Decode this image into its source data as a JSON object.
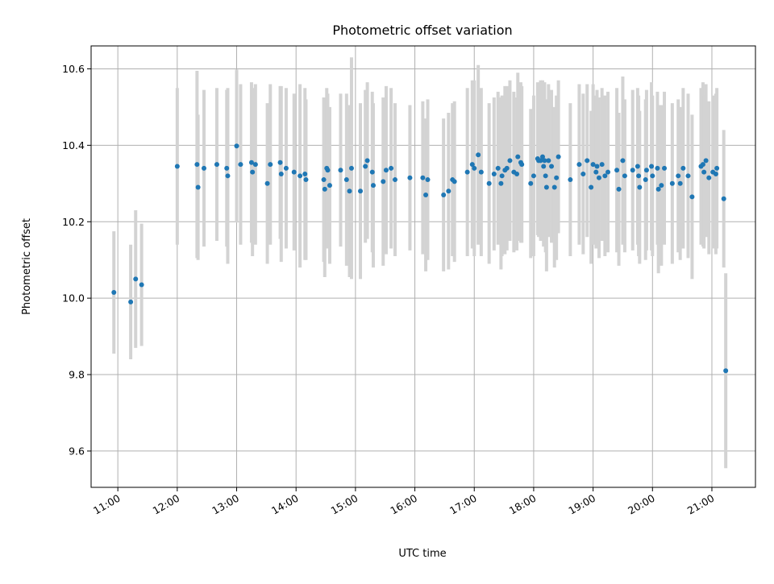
{
  "chart_data": {
    "type": "scatter",
    "title": "Photometric offset variation",
    "xlabel": "UTC time",
    "ylabel": "Photometric offset",
    "x_ticks": [
      "11:00",
      "12:00",
      "13:00",
      "14:00",
      "15:00",
      "16:00",
      "17:00",
      "18:00",
      "19:00",
      "20:00",
      "21:00"
    ],
    "y_ticks": [
      "9.6",
      "9.8",
      "10.0",
      "10.2",
      "10.4",
      "10.6"
    ],
    "xlim": [
      "10:33",
      "21:44"
    ],
    "ylim": [
      9.505,
      10.66
    ],
    "grid": true,
    "colors": {
      "marker": "#1f77b4",
      "errorbar": "#d3d3d3",
      "grid": "#b0b0b0"
    },
    "series": [
      {
        "x": [
          "10:56",
          "11:13",
          "11:18",
          "11:24",
          "12:00",
          "12:20",
          "12:21",
          "12:27",
          "12:40",
          "12:50",
          "12:51",
          "13:00",
          "13:04",
          "13:15",
          "13:16",
          "13:19",
          "13:31",
          "13:34",
          "13:44",
          "13:45",
          "13:50",
          "13:58",
          "14:04",
          "14:09",
          "14:10",
          "14:28",
          "14:29",
          "14:31",
          "14:32",
          "14:34",
          "14:45",
          "14:51",
          "14:54",
          "14:56",
          "15:05",
          "15:10",
          "15:12",
          "15:17",
          "15:18",
          "15:28",
          "15:31",
          "15:36",
          "15:40",
          "15:55",
          "16:08",
          "16:11",
          "16:13",
          "16:29",
          "16:34",
          "16:38",
          "16:40",
          "16:53",
          "16:58",
          "17:00",
          "17:04",
          "17:07",
          "17:15",
          "17:20",
          "17:24",
          "17:27",
          "17:28",
          "17:31",
          "17:33",
          "17:36",
          "17:40",
          "17:43",
          "17:44",
          "17:47",
          "17:48",
          "17:57",
          "18:00",
          "18:04",
          "18:05",
          "18:07",
          "18:09",
          "18:10",
          "18:11",
          "18:12",
          "18:13",
          "18:15",
          "18:18",
          "18:21",
          "18:23",
          "18:25",
          "18:37",
          "18:46",
          "18:50",
          "18:54",
          "18:58",
          "19:00",
          "19:03",
          "19:04",
          "19:06",
          "19:09",
          "19:12",
          "19:15",
          "19:24",
          "19:26",
          "19:30",
          "19:32",
          "19:40",
          "19:45",
          "19:46",
          "19:47",
          "19:53",
          "19:54",
          "19:59",
          "20:00",
          "20:05",
          "20:06",
          "20:09",
          "20:12",
          "20:20",
          "20:26",
          "20:28",
          "20:31",
          "20:36",
          "20:40",
          "20:49",
          "20:51",
          "20:52",
          "20:54",
          "20:57",
          "21:01",
          "21:04",
          "21:05",
          "21:12",
          "21:14"
        ],
        "y": [
          10.015,
          9.99,
          10.05,
          10.035,
          10.345,
          10.35,
          10.29,
          10.34,
          10.35,
          10.34,
          10.32,
          10.398,
          10.35,
          10.355,
          10.33,
          10.35,
          10.3,
          10.35,
          10.355,
          10.325,
          10.34,
          10.33,
          10.32,
          10.325,
          10.31,
          10.31,
          10.285,
          10.34,
          10.335,
          10.295,
          10.335,
          10.31,
          10.28,
          10.34,
          10.28,
          10.345,
          10.36,
          10.33,
          10.295,
          10.305,
          10.335,
          10.34,
          10.31,
          10.315,
          10.315,
          10.27,
          10.31,
          10.27,
          10.28,
          10.31,
          10.305,
          10.33,
          10.35,
          10.34,
          10.375,
          10.33,
          10.3,
          10.325,
          10.34,
          10.3,
          10.32,
          10.335,
          10.34,
          10.36,
          10.33,
          10.325,
          10.37,
          10.355,
          10.35,
          10.3,
          10.32,
          10.365,
          10.36,
          10.36,
          10.37,
          10.345,
          10.36,
          10.32,
          10.29,
          10.36,
          10.345,
          10.29,
          10.315,
          10.37,
          10.31,
          10.35,
          10.325,
          10.36,
          10.29,
          10.35,
          10.33,
          10.345,
          10.315,
          10.35,
          10.32,
          10.33,
          10.335,
          10.285,
          10.36,
          10.32,
          10.335,
          10.345,
          10.32,
          10.29,
          10.31,
          10.335,
          10.345,
          10.32,
          10.34,
          10.285,
          10.295,
          10.34,
          10.3,
          10.32,
          10.3,
          10.34,
          10.32,
          10.265,
          10.345,
          10.35,
          10.33,
          10.36,
          10.315,
          10.33,
          10.325,
          10.34,
          10.26,
          9.81
        ],
        "yerr": [
          0.16,
          0.15,
          0.18,
          0.16,
          0.205,
          0.245,
          0.19,
          0.205,
          0.2,
          0.205,
          0.23,
          0.2,
          0.21,
          0.21,
          0.22,
          0.21,
          0.21,
          0.21,
          0.2,
          0.23,
          0.21,
          0.205,
          0.24,
          0.225,
          0.21,
          0.215,
          0.23,
          0.21,
          0.2,
          0.205,
          0.2,
          0.225,
          0.225,
          0.29,
          0.23,
          0.2,
          0.205,
          0.21,
          0.215,
          0.22,
          0.22,
          0.21,
          0.2,
          0.19,
          0.2,
          0.2,
          0.21,
          0.2,
          0.205,
          0.2,
          0.21,
          0.22,
          0.22,
          0.23,
          0.235,
          0.22,
          0.21,
          0.2,
          0.2,
          0.225,
          0.21,
          0.22,
          0.215,
          0.21,
          0.21,
          0.2,
          0.22,
          0.21,
          0.205,
          0.195,
          0.21,
          0.2,
          0.2,
          0.21,
          0.2,
          0.21,
          0.205,
          0.2,
          0.22,
          0.2,
          0.2,
          0.21,
          0.215,
          0.2,
          0.2,
          0.21,
          0.21,
          0.2,
          0.2,
          0.21,
          0.2,
          0.2,
          0.21,
          0.2,
          0.21,
          0.21,
          0.215,
          0.2,
          0.22,
          0.2,
          0.21,
          0.205,
          0.21,
          0.2,
          0.21,
          0.21,
          0.22,
          0.21,
          0.2,
          0.22,
          0.21,
          0.2,
          0.21,
          0.2,
          0.2,
          0.21,
          0.215,
          0.215,
          0.205,
          0.215,
          0.2,
          0.2,
          0.2,
          0.2,
          0.21,
          0.21,
          0.18,
          0.255
        ]
      }
    ]
  }
}
